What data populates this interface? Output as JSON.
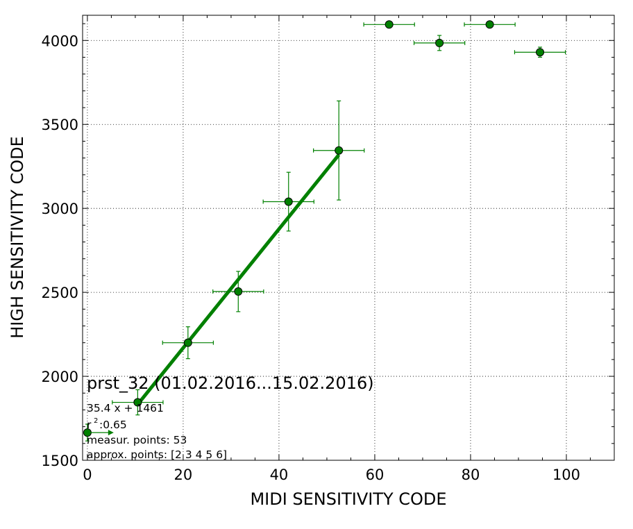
{
  "chart_data": {
    "type": "scatter",
    "xlabel": "MIDI SENSITIVITY CODE",
    "ylabel": "HIGH SENSITIVITY CODE",
    "xlim": [
      -1,
      110
    ],
    "ylim": [
      1500,
      4150
    ],
    "xticks": [
      0,
      20,
      40,
      60,
      80,
      100
    ],
    "yticks": [
      1500,
      2000,
      2500,
      3000,
      3500,
      4000
    ],
    "xtick_labels": [
      "0",
      "20",
      "40",
      "60",
      "80",
      "100"
    ],
    "ytick_labels": [
      "1500",
      "2000",
      "2500",
      "3000",
      "3500",
      "4000"
    ],
    "grid": true,
    "color": "#008000",
    "points": [
      {
        "x": 0,
        "y": 1665,
        "xerr": 0,
        "yerr": 50
      },
      {
        "x": 10.5,
        "y": 1845,
        "xerr": 5.3,
        "yerr": 75
      },
      {
        "x": 21,
        "y": 2200,
        "xerr": 5.3,
        "yerr": 95
      },
      {
        "x": 31.5,
        "y": 2505,
        "xerr": 5.3,
        "yerr": 120
      },
      {
        "x": 42,
        "y": 3040,
        "xerr": 5.3,
        "yerr": 175
      },
      {
        "x": 52.5,
        "y": 3345,
        "xerr": 5.3,
        "yerr": 295
      },
      {
        "x": 63,
        "y": 4095,
        "xerr": 5.3,
        "yerr": 0
      },
      {
        "x": 73.5,
        "y": 3985,
        "xerr": 5.3,
        "yerr": 45
      },
      {
        "x": 84,
        "y": 4095,
        "xerr": 5.3,
        "yerr": 0
      },
      {
        "x": 94.5,
        "y": 3930,
        "xerr": 5.3,
        "yerr": 30
      }
    ],
    "fit_line": {
      "x": [
        10.5,
        52.5
      ],
      "slope": 35.4,
      "intercept": 1461
    },
    "arrow": {
      "x_from": 0,
      "x_to": 5.5,
      "y": 1665
    }
  },
  "annotations": {
    "title": "prst_32 (01.02.2016...15.02.2016)",
    "equation": "35.4 x + 1461",
    "r2_prefix": "r",
    "r2_sup": "2",
    "r2_value": " :0.65",
    "measur_points": "measur. points: 53",
    "approx_points": "approx. points: [2 3 4 5 6]"
  }
}
